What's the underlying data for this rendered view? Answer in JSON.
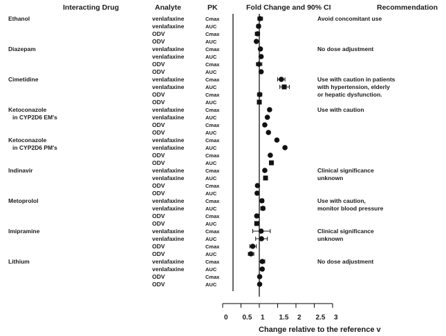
{
  "chart_data": {
    "type": "forest",
    "headers": {
      "drug": "Interacting Drug",
      "analyte": "Analyte",
      "pk": "PK",
      "fold": "Fold Change and 90% CI",
      "rec": "Recommendation"
    },
    "xlabel": "Change relative to the reference v",
    "xlim": [
      0,
      3
    ],
    "xticks": [
      "0",
      "0.5",
      "1",
      "1.5",
      "2",
      "2.5",
      "3"
    ],
    "reference_line": 1,
    "groups": [
      {
        "drug": [
          "Ethanol"
        ],
        "rec": [
          "Avoid concomitant use"
        ],
        "rows": [
          {
            "analyte": "venlafaxine",
            "pk": "Cmax",
            "value": 1.02,
            "lo": 0.96,
            "hi": 1.09,
            "marker": "circle"
          },
          {
            "analyte": "venlafaxine",
            "pk": "AUC",
            "value": 0.98,
            "lo": 0.93,
            "hi": 1.03,
            "marker": "circle"
          },
          {
            "analyte": "ODV",
            "pk": "Cmax",
            "value": 0.95,
            "lo": 0.89,
            "hi": 1.01,
            "marker": "circle"
          },
          {
            "analyte": "ODV",
            "pk": "AUC",
            "value": 0.92,
            "lo": 0.88,
            "hi": 0.96,
            "marker": "circle"
          }
        ]
      },
      {
        "drug": [
          "Diazepam"
        ],
        "rec": [
          "No dose adjustment"
        ],
        "rows": [
          {
            "analyte": "venlafaxine",
            "pk": "Cmax",
            "value": 1.03,
            "lo": 1.0,
            "hi": 1.06,
            "marker": "circle"
          },
          {
            "analyte": "venlafaxine",
            "pk": "AUC",
            "value": 1.05,
            "lo": 1.01,
            "hi": 1.08,
            "marker": "circle"
          },
          {
            "analyte": "ODV",
            "pk": "Cmax",
            "value": 0.99,
            "lo": 0.92,
            "hi": 1.07,
            "marker": "circle"
          },
          {
            "analyte": "ODV",
            "pk": "AUC",
            "value": 1.05,
            "lo": 1.02,
            "hi": 1.08,
            "marker": "circle"
          }
        ]
      },
      {
        "drug": [
          "Cimetidine"
        ],
        "rec": [
          "Use with caution in patients",
          "with hypertension, elderly",
          "or hepatic dysfunction."
        ],
        "rows": [
          {
            "analyte": "venlafaxine",
            "pk": "Cmax",
            "value": 1.6,
            "lo": 1.5,
            "hi": 1.7,
            "marker": "circle"
          },
          {
            "analyte": "venlafaxine",
            "pk": "AUC",
            "value": 1.68,
            "lo": 1.56,
            "hi": 1.82,
            "marker": "square"
          },
          {
            "analyte": "ODV",
            "pk": "Cmax",
            "value": 1.01,
            "lo": 0.95,
            "hi": 1.07,
            "marker": "circle"
          },
          {
            "analyte": "ODV",
            "pk": "AUC",
            "value": 1.0,
            "lo": 0.97,
            "hi": 1.03,
            "marker": "square"
          }
        ]
      },
      {
        "drug": [
          "Ketoconazole",
          "in CYP2D6 EM's"
        ],
        "rec": [
          "Use with caution"
        ],
        "rows": [
          {
            "analyte": "venlafaxine",
            "pk": "Cmax",
            "value": 1.28,
            "lo": 1.24,
            "hi": 1.32,
            "marker": "circle"
          },
          {
            "analyte": "venlafaxine",
            "pk": "AUC",
            "value": 1.22,
            "lo": 1.19,
            "hi": 1.25,
            "marker": "circle"
          },
          {
            "analyte": "ODV",
            "pk": "Cmax",
            "value": 1.15,
            "lo": 1.12,
            "hi": 1.18,
            "marker": "circle"
          },
          {
            "analyte": "ODV",
            "pk": "AUC",
            "value": 1.25,
            "lo": 1.22,
            "hi": 1.28,
            "marker": "circle"
          }
        ]
      },
      {
        "drug": [
          "Ketoconazole",
          "in CYP2D6 PM's"
        ],
        "rec": [],
        "rows": [
          {
            "analyte": "venlafaxine",
            "pk": "Cmax",
            "value": 1.48,
            "lo": 1.44,
            "hi": 1.52,
            "marker": "circle"
          },
          {
            "analyte": "venlafaxine",
            "pk": "AUC",
            "value": 1.7,
            "lo": 1.66,
            "hi": 1.74,
            "marker": "circle"
          },
          {
            "analyte": "ODV",
            "pk": "Cmax",
            "value": 1.3,
            "lo": 1.27,
            "hi": 1.33,
            "marker": "circle"
          },
          {
            "analyte": "ODV",
            "pk": "AUC",
            "value": 1.33,
            "lo": 1.3,
            "hi": 1.36,
            "marker": "square"
          }
        ]
      },
      {
        "drug": [
          "Indinavir"
        ],
        "rec": [
          "Clinical significance",
          "unknown"
        ],
        "rows": [
          {
            "analyte": "venlafaxine",
            "pk": "Cmax",
            "value": 1.15,
            "lo": 1.12,
            "hi": 1.18,
            "marker": "circle"
          },
          {
            "analyte": "venlafaxine",
            "pk": "AUC",
            "value": 1.17,
            "lo": 1.14,
            "hi": 1.2,
            "marker": "square"
          },
          {
            "analyte": "ODV",
            "pk": "Cmax",
            "value": 0.95,
            "lo": 0.92,
            "hi": 0.98,
            "marker": "circle"
          },
          {
            "analyte": "ODV",
            "pk": "AUC",
            "value": 0.94,
            "lo": 0.91,
            "hi": 0.97,
            "marker": "circle"
          }
        ]
      },
      {
        "drug": [
          "Metoprolol"
        ],
        "rec": [
          "Use with caution,",
          "monitor blood pressure"
        ],
        "rows": [
          {
            "analyte": "venlafaxine",
            "pk": "Cmax",
            "value": 1.07,
            "lo": 1.0,
            "hi": 1.12,
            "marker": "circle"
          },
          {
            "analyte": "venlafaxine",
            "pk": "AUC",
            "value": 1.1,
            "lo": 1.04,
            "hi": 1.15,
            "marker": "circle"
          },
          {
            "analyte": "ODV",
            "pk": "Cmax",
            "value": 0.93,
            "lo": 0.89,
            "hi": 0.98,
            "marker": "circle"
          },
          {
            "analyte": "ODV",
            "pk": "AUC",
            "value": 0.93,
            "lo": 0.9,
            "hi": 0.96,
            "marker": "square"
          }
        ]
      },
      {
        "drug": [
          "Imipramine"
        ],
        "rec": [
          "Clinical significance",
          "unknown"
        ],
        "rows": [
          {
            "analyte": "venlafaxine",
            "pk": "Cmax",
            "value": 1.05,
            "lo": 0.82,
            "hi": 1.3,
            "marker": "circle"
          },
          {
            "analyte": "venlafaxine",
            "pk": "AUC",
            "value": 1.06,
            "lo": 0.9,
            "hi": 1.22,
            "marker": "circle"
          },
          {
            "analyte": "ODV",
            "pk": "Cmax",
            "value": 0.82,
            "lo": 0.74,
            "hi": 0.92,
            "marker": "circle"
          },
          {
            "analyte": "ODV",
            "pk": "AUC",
            "value": 0.77,
            "lo": 0.7,
            "hi": 0.85,
            "marker": "circle"
          }
        ]
      },
      {
        "drug": [
          "Lithium"
        ],
        "rec": [
          "No dose adjustment"
        ],
        "rows": [
          {
            "analyte": "venlafaxine",
            "pk": "Cmax",
            "value": 1.08,
            "lo": 1.0,
            "hi": 1.15,
            "marker": "circle"
          },
          {
            "analyte": "venlafaxine",
            "pk": "AUC",
            "value": 1.08,
            "lo": 1.04,
            "hi": 1.12,
            "marker": "circle"
          },
          {
            "analyte": "ODV",
            "pk": "Cmax",
            "value": 1.01,
            "lo": 0.98,
            "hi": 1.04,
            "marker": "circle"
          },
          {
            "analyte": "ODV",
            "pk": "AUC",
            "value": 1.01,
            "lo": 0.98,
            "hi": 1.04,
            "marker": "circle"
          }
        ]
      }
    ]
  }
}
